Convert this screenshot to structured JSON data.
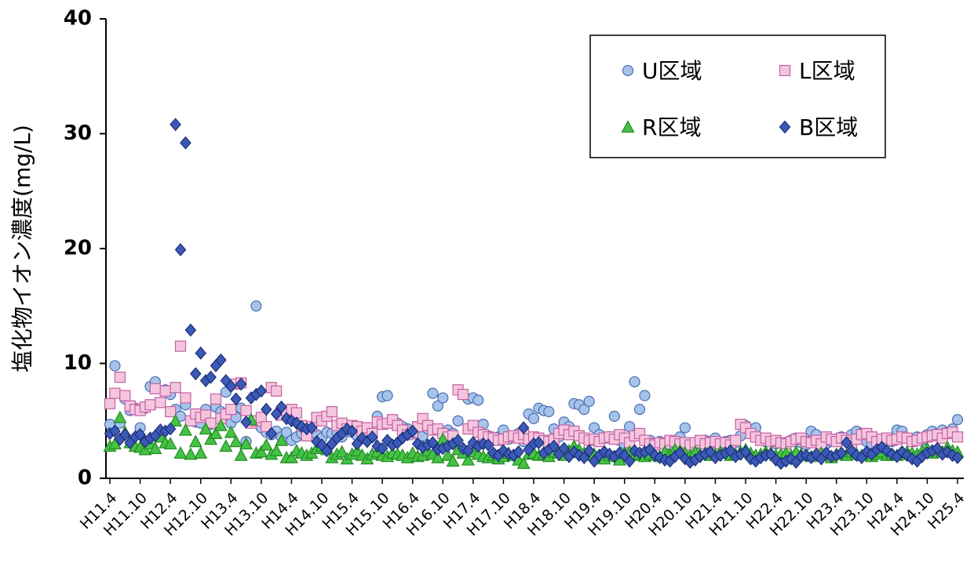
{
  "chart_data": {
    "type": "scatter",
    "y_label": "塩化物イオン濃度(mg/L)",
    "ylim": [
      0,
      40
    ],
    "yticks": [
      0,
      10,
      20,
      30,
      40
    ],
    "categories": [
      "H11.4",
      null,
      null,
      null,
      null,
      null,
      "H11.10",
      null,
      null,
      null,
      null,
      null,
      "H12.4",
      null,
      null,
      null,
      null,
      null,
      "H12.10",
      null,
      null,
      null,
      null,
      null,
      "H13.4",
      null,
      null,
      null,
      null,
      null,
      "H13.10",
      null,
      null,
      null,
      null,
      null,
      "H14.4",
      null,
      null,
      null,
      null,
      null,
      "H14.10",
      null,
      null,
      null,
      null,
      null,
      "H15.4",
      null,
      null,
      null,
      null,
      null,
      "H15.10",
      null,
      null,
      null,
      null,
      null,
      "H16.4",
      null,
      null,
      null,
      null,
      null,
      "H16.10",
      null,
      null,
      null,
      null,
      null,
      "H17.4",
      null,
      null,
      null,
      null,
      null,
      "H17.10",
      null,
      null,
      null,
      null,
      null,
      "H18.4",
      null,
      null,
      null,
      null,
      null,
      "H18.10",
      null,
      null,
      null,
      null,
      null,
      "H19.4",
      null,
      null,
      null,
      null,
      null,
      "H19.10",
      null,
      null,
      null,
      null,
      null,
      "H20.4",
      null,
      null,
      null,
      null,
      null,
      "H20.10",
      null,
      null,
      null,
      null,
      null,
      "H21.4",
      null,
      null,
      null,
      null,
      null,
      "H21.10",
      null,
      null,
      null,
      null,
      null,
      "H22.4",
      null,
      null,
      null,
      null,
      null,
      "H22.10",
      null,
      null,
      null,
      null,
      null,
      "H23.4",
      null,
      null,
      null,
      null,
      null,
      "H23.10",
      null,
      null,
      null,
      null,
      null,
      "H24.4",
      null,
      null,
      null,
      null,
      null,
      "H24.10",
      null,
      null,
      null,
      null,
      null,
      "H25.4"
    ],
    "series": [
      {
        "name": "U区域",
        "marker": "circle",
        "color": "#a6c4ea",
        "stroke": "#4c6db2",
        "values": [
          4.7,
          9.8,
          4.8,
          6.9,
          5.9,
          6.1,
          4.4,
          6.1,
          8.0,
          8.4,
          4.0,
          7.7,
          7.3,
          6.0,
          5.4,
          6.4,
          5.0,
          4.9,
          4.8,
          6.0,
          4.7,
          6.2,
          5.8,
          7.5,
          4.8,
          5.3,
          6.1,
          3.2,
          4.9,
          15.0,
          4.4,
          4.0,
          3.8,
          4.1,
          3.6,
          4.0,
          3.3,
          3.6,
          3.9,
          4.5,
          4.2,
          3.8,
          3.5,
          4.0,
          3.9,
          4.0,
          3.6,
          4.1,
          4.0,
          3.7,
          4.2,
          3.9,
          3.6,
          5.4,
          7.1,
          7.2,
          5.1,
          4.8,
          4.5,
          4.3,
          4.0,
          3.8,
          3.7,
          4.3,
          7.4,
          6.3,
          7.0,
          4.2,
          3.9,
          5.0,
          7.3,
          6.9,
          7.0,
          6.8,
          4.7,
          3.7,
          3.5,
          3.6,
          4.2,
          3.4,
          3.7,
          3.9,
          3.2,
          5.6,
          5.2,
          6.1,
          5.9,
          5.8,
          4.3,
          3.6,
          4.9,
          4.5,
          6.5,
          6.4,
          6.0,
          6.7,
          4.4,
          3.8,
          3.5,
          3.6,
          5.4,
          3.3,
          3.0,
          4.5,
          8.4,
          6.0,
          7.2,
          3.3,
          3.0,
          3.2,
          3.0,
          2.9,
          3.1,
          3.6,
          4.4,
          3.1,
          2.9,
          3.0,
          3.3,
          3.2,
          3.5,
          3.0,
          3.2,
          3.3,
          3.1,
          3.7,
          4.6,
          4.2,
          4.4,
          3.5,
          3.2,
          3.3,
          3.0,
          3.1,
          3.0,
          3.3,
          3.5,
          3.1,
          2.9,
          4.1,
          3.8,
          3.3,
          3.0,
          3.2,
          3.4,
          3.6,
          3.3,
          3.8,
          4.1,
          3.9,
          3.2,
          3.0,
          3.1,
          3.3,
          3.5,
          3.2,
          4.2,
          4.1,
          3.5,
          3.4,
          3.6,
          3.3,
          3.8,
          4.1,
          3.9,
          4.2,
          4.0,
          4.3,
          5.1
        ]
      },
      {
        "name": "L区域",
        "marker": "square",
        "color": "#f4c6de",
        "stroke": "#c460a2",
        "values": [
          6.5,
          7.4,
          8.8,
          7.2,
          6.3,
          6.0,
          5.9,
          6.2,
          6.4,
          7.8,
          6.6,
          7.6,
          5.8,
          7.9,
          11.5,
          7.0,
          5.0,
          5.6,
          5.3,
          5.5,
          4.8,
          6.9,
          5.2,
          5.6,
          6.0,
          8.2,
          8.3,
          5.9,
          4.8,
          5.0,
          5.3,
          4.5,
          7.9,
          7.6,
          5.5,
          5.9,
          6.0,
          5.7,
          4.6,
          3.7,
          4.5,
          5.3,
          5.0,
          5.4,
          5.8,
          4.6,
          4.8,
          4.3,
          4.6,
          4.5,
          4.1,
          4.4,
          3.9,
          4.9,
          4.7,
          4.8,
          5.1,
          4.6,
          4.2,
          3.8,
          4.0,
          4.5,
          5.2,
          4.6,
          4.2,
          4.3,
          3.9,
          3.6,
          3.7,
          7.7,
          7.3,
          4.3,
          4.6,
          4.0,
          3.8,
          3.6,
          3.5,
          3.3,
          3.4,
          3.6,
          3.7,
          3.5,
          3.8,
          3.4,
          3.6,
          3.5,
          3.3,
          3.2,
          3.4,
          3.9,
          4.2,
          3.8,
          4.1,
          3.7,
          3.5,
          3.3,
          3.4,
          3.2,
          3.5,
          3.6,
          3.4,
          3.8,
          3.5,
          3.1,
          3.7,
          3.9,
          3.3,
          3.0,
          2.9,
          3.1,
          3.0,
          3.3,
          3.2,
          3.0,
          3.1,
          2.9,
          3.1,
          3.3,
          3.0,
          3.1,
          3.2,
          3.0,
          3.1,
          2.9,
          3.3,
          4.7,
          4.4,
          3.9,
          3.6,
          3.3,
          3.5,
          3.2,
          3.3,
          3.1,
          3.0,
          3.2,
          3.4,
          3.5,
          3.2,
          3.1,
          3.3,
          3.0,
          3.6,
          3.4,
          3.2,
          3.5,
          3.3,
          3.1,
          3.4,
          3.8,
          3.9,
          3.6,
          3.2,
          3.4,
          3.5,
          3.3,
          3.4,
          3.6,
          3.5,
          3.2,
          3.3,
          3.5,
          3.6,
          3.7,
          3.8,
          3.5,
          3.9,
          4.0,
          3.6
        ]
      },
      {
        "name": "R区域",
        "marker": "triangle",
        "color": "#44c244",
        "stroke": "#238a23",
        "values": [
          2.8,
          3.0,
          5.3,
          4.0,
          3.1,
          2.8,
          2.7,
          2.5,
          3.0,
          2.6,
          3.6,
          3.1,
          3.0,
          5.0,
          2.2,
          4.2,
          2.1,
          3.2,
          2.2,
          4.3,
          3.4,
          3.9,
          4.6,
          2.8,
          4.0,
          3.2,
          2.0,
          3.0,
          5.1,
          2.2,
          2.3,
          2.9,
          2.1,
          2.4,
          3.3,
          1.8,
          1.8,
          2.4,
          2.2,
          2.0,
          2.2,
          2.6,
          2.8,
          2.5,
          1.8,
          2.1,
          2.3,
          1.7,
          2.1,
          2.4,
          2.0,
          1.7,
          2.1,
          2.3,
          2.0,
          1.9,
          2.2,
          2.1,
          2.0,
          1.8,
          2.2,
          1.9,
          2.0,
          2.4,
          2.1,
          1.8,
          3.4,
          2.0,
          1.5,
          2.5,
          2.2,
          1.6,
          2.3,
          2.1,
          1.9,
          1.8,
          2.0,
          1.7,
          1.9,
          2.2,
          2.0,
          1.6,
          1.3,
          2.1,
          2.2,
          2.0,
          2.1,
          1.9,
          2.3,
          2.2,
          2.0,
          2.4,
          2.8,
          2.5,
          2.2,
          2.0,
          2.1,
          1.8,
          1.7,
          2.0,
          1.9,
          1.6,
          2.2,
          2.3,
          2.0,
          2.1,
          1.9,
          2.1,
          2.0,
          1.9,
          2.3,
          2.1,
          2.5,
          2.4,
          2.2,
          2.0,
          2.3,
          2.1,
          2.2,
          2.0,
          2.1,
          2.3,
          2.2,
          2.0,
          2.1,
          2.3,
          2.5,
          2.2,
          2.0,
          2.1,
          2.3,
          2.2,
          2.0,
          2.1,
          2.2,
          2.0,
          2.3,
          2.1,
          2.0,
          1.9,
          2.1,
          2.2,
          2.0,
          1.8,
          2.1,
          2.2,
          2.0,
          2.3,
          2.1,
          2.0,
          2.2,
          1.9,
          2.1,
          2.3,
          2.0,
          2.1,
          2.0,
          2.1,
          2.3,
          2.2,
          2.1,
          2.4,
          2.6,
          2.2,
          2.5,
          2.3,
          2.7,
          2.4,
          2.3
        ]
      },
      {
        "name": "B区域",
        "marker": "diamond",
        "color": "#3a5ab6",
        "stroke": "#1c2c76",
        "values": [
          3.9,
          4.1,
          3.4,
          3.8,
          3.1,
          3.6,
          3.8,
          3.2,
          3.5,
          3.7,
          4.2,
          4.1,
          4.3,
          30.8,
          19.9,
          29.2,
          12.9,
          9.1,
          10.9,
          8.5,
          8.8,
          9.8,
          10.3,
          8.5,
          8.0,
          6.9,
          8.2,
          4.9,
          7.0,
          7.3,
          7.6,
          6.0,
          3.9,
          5.6,
          6.2,
          5.2,
          5.0,
          4.8,
          4.5,
          4.3,
          4.4,
          3.2,
          2.9,
          2.4,
          3.0,
          3.5,
          3.9,
          4.3,
          4.1,
          3.0,
          3.5,
          3.2,
          3.6,
          2.8,
          2.6,
          3.3,
          2.9,
          3.1,
          3.5,
          3.8,
          4.1,
          3.0,
          2.7,
          2.9,
          3.1,
          2.5,
          2.6,
          2.8,
          3.0,
          3.3,
          2.6,
          2.4,
          3.1,
          2.8,
          3.0,
          2.9,
          2.2,
          2.0,
          2.4,
          2.1,
          2.0,
          2.3,
          4.4,
          2.5,
          3.0,
          3.1,
          2.2,
          2.5,
          2.8,
          2.1,
          2.6,
          1.9,
          2.3,
          2.0,
          1.8,
          2.4,
          1.5,
          2.0,
          2.3,
          2.1,
          1.9,
          2.2,
          2.0,
          1.5,
          2.4,
          2.2,
          2.3,
          2.5,
          2.0,
          1.8,
          1.6,
          1.5,
          1.9,
          2.2,
          1.7,
          1.4,
          1.6,
          1.9,
          2.1,
          2.3,
          1.8,
          2.0,
          2.2,
          2.4,
          1.9,
          2.1,
          2.3,
          1.7,
          1.5,
          1.8,
          2.0,
          2.1,
          1.6,
          1.3,
          1.5,
          1.7,
          1.4,
          1.9,
          2.0,
          1.8,
          2.1,
          1.7,
          2.2,
          1.9,
          2.0,
          2.2,
          3.1,
          2.4,
          2.0,
          1.8,
          2.3,
          2.1,
          2.5,
          2.7,
          2.4,
          2.1,
          1.9,
          2.3,
          2.0,
          1.7,
          1.5,
          1.9,
          2.2,
          2.4,
          2.6,
          2.1,
          2.3,
          2.0,
          1.8
        ]
      }
    ]
  }
}
